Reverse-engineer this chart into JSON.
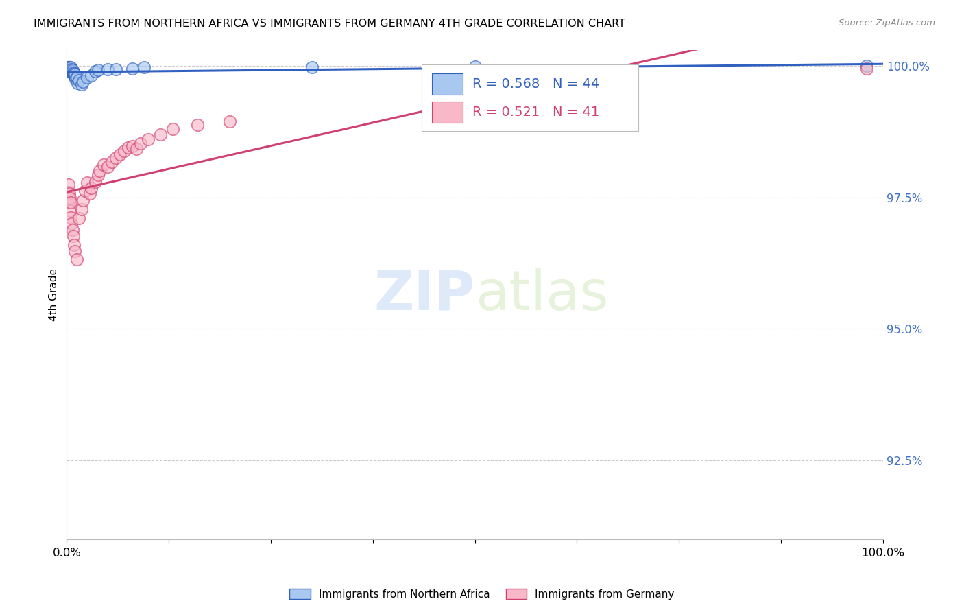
{
  "title": "IMMIGRANTS FROM NORTHERN AFRICA VS IMMIGRANTS FROM GERMANY 4TH GRADE CORRELATION CHART",
  "source_text": "Source: ZipAtlas.com",
  "ylabel": "4th Grade",
  "xlim": [
    0.0,
    1.0
  ],
  "ylim": [
    0.91,
    1.003
  ],
  "ytick_labels": [
    "92.5%",
    "95.0%",
    "97.5%",
    "100.0%"
  ],
  "ytick_values": [
    0.925,
    0.95,
    0.975,
    1.0
  ],
  "legend_blue_label": "Immigrants from Northern Africa",
  "legend_pink_label": "Immigrants from Germany",
  "R_blue": 0.568,
  "N_blue": 44,
  "R_pink": 0.521,
  "N_pink": 41,
  "blue_color": "#a8c8f0",
  "pink_color": "#f8b8c8",
  "trendline_blue": "#3060c0",
  "trendline_pink": "#d04070",
  "watermark_zip": "ZIP",
  "watermark_atlas": "atlas",
  "blue_scatter_x": [
    0.001,
    0.001,
    0.002,
    0.002,
    0.003,
    0.003,
    0.003,
    0.004,
    0.004,
    0.004,
    0.005,
    0.005,
    0.005,
    0.005,
    0.005,
    0.006,
    0.006,
    0.006,
    0.007,
    0.007,
    0.007,
    0.008,
    0.008,
    0.009,
    0.009,
    0.01,
    0.01,
    0.011,
    0.012,
    0.013,
    0.015,
    0.018,
    0.02,
    0.025,
    0.03,
    0.035,
    0.038,
    0.05,
    0.06,
    0.08,
    0.095,
    0.3,
    0.5,
    0.98
  ],
  "blue_scatter_y": [
    0.9995,
    0.9998,
    0.9995,
    0.9997,
    0.9993,
    0.9995,
    0.9997,
    0.9992,
    0.9994,
    0.9996,
    0.999,
    0.9992,
    0.9994,
    0.9996,
    0.9998,
    0.9988,
    0.9991,
    0.9994,
    0.9986,
    0.9989,
    0.9992,
    0.9984,
    0.9987,
    0.9982,
    0.9985,
    0.998,
    0.9984,
    0.9975,
    0.9978,
    0.9968,
    0.9972,
    0.9965,
    0.997,
    0.9978,
    0.9982,
    0.999,
    0.9992,
    0.9993,
    0.9994,
    0.9995,
    0.9997,
    0.9998,
    0.9999,
    1.0
  ],
  "pink_scatter_x": [
    0.001,
    0.002,
    0.003,
    0.003,
    0.004,
    0.004,
    0.005,
    0.005,
    0.006,
    0.007,
    0.008,
    0.009,
    0.01,
    0.012,
    0.015,
    0.018,
    0.02,
    0.022,
    0.025,
    0.028,
    0.03,
    0.035,
    0.038,
    0.04,
    0.045,
    0.05,
    0.055,
    0.06,
    0.065,
    0.07,
    0.075,
    0.08,
    0.085,
    0.09,
    0.1,
    0.115,
    0.13,
    0.16,
    0.2,
    0.46,
    0.98
  ],
  "pink_scatter_y": [
    0.976,
    0.9775,
    0.9742,
    0.9758,
    0.9725,
    0.9748,
    0.9712,
    0.974,
    0.97,
    0.9688,
    0.9676,
    0.966,
    0.9648,
    0.9632,
    0.971,
    0.9728,
    0.9745,
    0.9762,
    0.9778,
    0.9758,
    0.9768,
    0.978,
    0.9792,
    0.98,
    0.9812,
    0.9808,
    0.9818,
    0.9825,
    0.9832,
    0.9838,
    0.9845,
    0.9848,
    0.9842,
    0.9852,
    0.986,
    0.987,
    0.988,
    0.9888,
    0.9895,
    0.999,
    0.9995
  ]
}
